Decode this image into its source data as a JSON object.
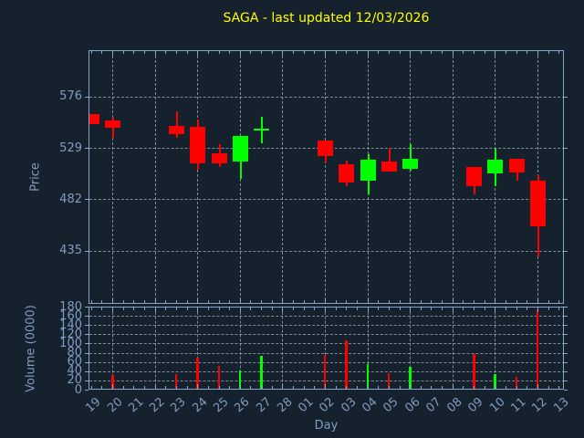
{
  "title": "SAGA - last updated 12/03/2026",
  "colors": {
    "background": "#16212e",
    "axis": "#87a6c9",
    "tick_label": "#7f9cc1",
    "grid": "#a0afbe",
    "title": "#ffff00",
    "up": "#00ff00",
    "down": "#ff0000"
  },
  "axes": {
    "price_label": "Price",
    "volume_label": "Volume (0000)",
    "x_label": "Day"
  },
  "chart_data": {
    "type": "candlestick",
    "title": "SAGA - last updated 12/03/2026",
    "xlabel": "Day",
    "ylabel_price": "Price",
    "ylabel_volume": "Volume (0000)",
    "x_categories": [
      "19",
      "20",
      "21",
      "22",
      "23",
      "24",
      "25",
      "26",
      "27",
      "28",
      "01",
      "02",
      "03",
      "04",
      "05",
      "06",
      "07",
      "08",
      "09",
      "10",
      "11",
      "12",
      "13"
    ],
    "price_ticks": [
      576,
      529,
      482,
      435
    ],
    "price_ylim": [
      386.4,
      618.3
    ],
    "volume_ticks": [
      180,
      160,
      140,
      120,
      100,
      80,
      60,
      40,
      20,
      0
    ],
    "volume_ylim": [
      0,
      180
    ],
    "xlim": [
      -0.12,
      22.25
    ],
    "grid": true,
    "grid_x_indices": [
      1,
      3,
      5,
      7,
      9,
      11,
      13,
      15,
      17,
      19,
      21
    ],
    "legend": false,
    "series": [
      {
        "day": "19",
        "index": 0,
        "open": 561,
        "high": 561,
        "low": 551.5,
        "close": 551.5,
        "volume": 0
      },
      {
        "day": "20",
        "index": 1,
        "open": 554.5,
        "high": 557.5,
        "low": 539,
        "close": 548,
        "volume": 34
      },
      {
        "day": "23",
        "index": 4,
        "open": 549.5,
        "high": 563,
        "low": 539,
        "close": 542.5,
        "volume": 36
      },
      {
        "day": "24",
        "index": 5,
        "open": 549,
        "high": 556,
        "low": 510,
        "close": 515.5,
        "volume": 72
      },
      {
        "day": "25",
        "index": 6,
        "open": 524.5,
        "high": 533.5,
        "low": 512,
        "close": 515.5,
        "volume": 53
      },
      {
        "day": "26",
        "index": 7,
        "open": 517,
        "high": 541,
        "low": 501.5,
        "close": 541,
        "volume": 43
      },
      {
        "day": "27",
        "index": 8,
        "open": 547.5,
        "high": 558,
        "low": 534,
        "close": 547.5,
        "volume": 75
      },
      {
        "day": "02",
        "index": 11,
        "open": 536.5,
        "high": 536.5,
        "low": 516.5,
        "close": 522,
        "volume": 77
      },
      {
        "day": "03",
        "index": 12,
        "open": 515,
        "high": 518,
        "low": 494.5,
        "close": 498,
        "volume": 109
      },
      {
        "day": "04",
        "index": 13,
        "open": 500,
        "high": 524,
        "low": 487.5,
        "close": 519,
        "volume": 57
      },
      {
        "day": "05",
        "index": 14,
        "open": 517.5,
        "high": 530,
        "low": 508,
        "close": 508,
        "volume": 38
      },
      {
        "day": "06",
        "index": 15,
        "open": 511,
        "high": 533,
        "low": 509,
        "close": 519.5,
        "volume": 52
      },
      {
        "day": "09",
        "index": 18,
        "open": 512.5,
        "high": 512.5,
        "low": 487,
        "close": 494.5,
        "volume": 80
      },
      {
        "day": "10",
        "index": 19,
        "open": 506.5,
        "high": 529,
        "low": 495,
        "close": 519,
        "volume": 35
      },
      {
        "day": "11",
        "index": 20,
        "open": 520,
        "high": 520,
        "low": 499.5,
        "close": 507.5,
        "volume": 29
      },
      {
        "day": "12",
        "index": 21,
        "open": 500,
        "high": 505,
        "low": 430.5,
        "close": 458.5,
        "volume": 177
      }
    ]
  }
}
